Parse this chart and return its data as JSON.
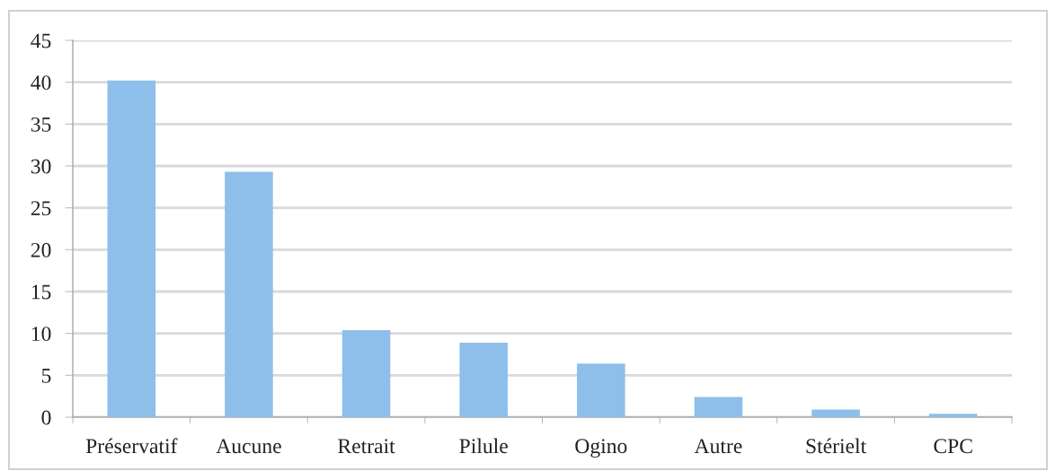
{
  "chart_data": {
    "type": "bar",
    "categories": [
      "Préservatif",
      "Aucune",
      "Retrait",
      "Pilule",
      "Ogino",
      "Autre",
      "Stérielt",
      "CPC"
    ],
    "values": [
      40.2,
      29.3,
      10.4,
      8.9,
      6.4,
      2.4,
      0.9,
      0.4
    ],
    "color": "#8dbfea",
    "ylim": [
      0,
      45
    ],
    "yticks": [
      0,
      5,
      10,
      15,
      20,
      25,
      30,
      35,
      40,
      45
    ],
    "grid": "y",
    "legend": false
  }
}
